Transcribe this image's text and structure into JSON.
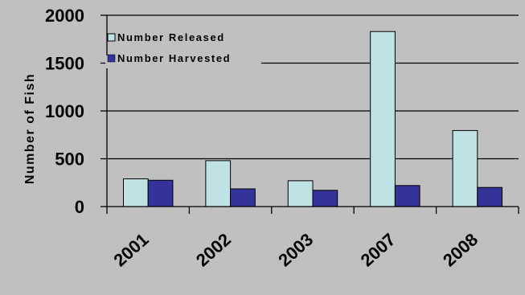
{
  "chart_data": {
    "type": "bar",
    "categories": [
      "2001",
      "2002",
      "2003",
      "2007",
      "2008"
    ],
    "series": [
      {
        "name": "Number Released",
        "values": [
          290,
          480,
          270,
          1830,
          795
        ],
        "color": "#bfe3e5"
      },
      {
        "name": "Number Harvested",
        "values": [
          275,
          185,
          170,
          220,
          200
        ],
        "color": "#333399"
      }
    ],
    "title": "",
    "xlabel": "",
    "ylabel": "Number of Fish",
    "ylim": [
      0,
      2000
    ],
    "yticks": [
      "0",
      "500",
      "1000",
      "1500",
      "2000"
    ],
    "grid": true,
    "legend_position": "top-left",
    "background_color": "#c0c0c0"
  }
}
